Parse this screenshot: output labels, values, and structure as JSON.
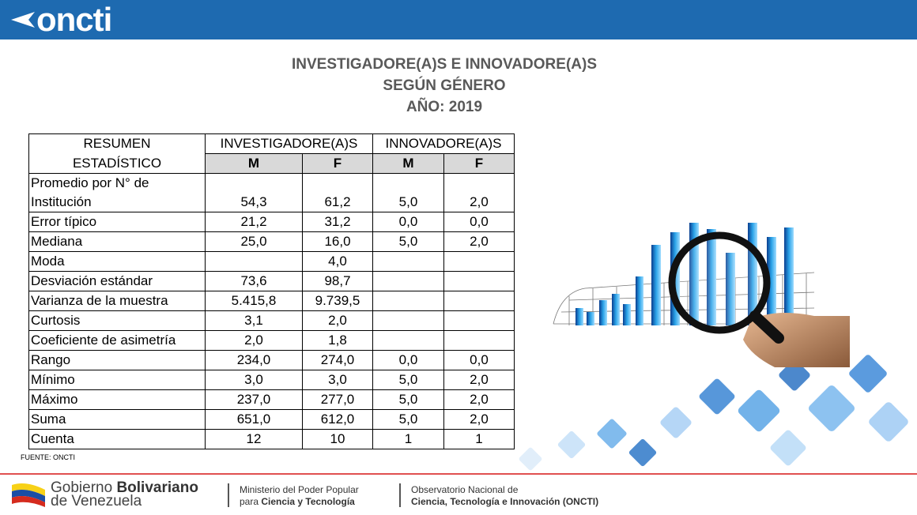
{
  "header": {
    "logo_text": "oncti"
  },
  "title": {
    "line1": "INVESTIGADORE(A)S E INNOVADORE(A)S",
    "line2": "SEGÚN GÉNERO",
    "line3": "AÑO: 2019"
  },
  "table": {
    "head_label_line1": "RESUMEN",
    "head_label_line2": "ESTADÍSTICO",
    "group1": "INVESTIGADORE(A)S",
    "group2": "INNOVADORE(A)S",
    "sub": [
      "M",
      "F",
      "M",
      "F"
    ],
    "rows": [
      {
        "label_line1": "Promedio por N° de",
        "label_line2": "Institución",
        "v": [
          "54,3",
          "61,2",
          "5,0",
          "2,0"
        ]
      },
      {
        "label": "Error típico",
        "v": [
          "21,2",
          "31,2",
          "0,0",
          "0,0"
        ]
      },
      {
        "label": "Mediana",
        "v": [
          "25,0",
          "16,0",
          "5,0",
          "2,0"
        ]
      },
      {
        "label": "Moda",
        "v": [
          "",
          "4,0",
          "",
          ""
        ]
      },
      {
        "label": "Desviación estándar",
        "v": [
          "73,6",
          "98,7",
          "",
          ""
        ]
      },
      {
        "label": "Varianza de la muestra",
        "v": [
          "5.415,8",
          "9.739,5",
          "",
          ""
        ]
      },
      {
        "label": "Curtosis",
        "v": [
          "3,1",
          "2,0",
          "",
          ""
        ]
      },
      {
        "label": "Coeficiente de asimetría",
        "v": [
          "2,0",
          "1,8",
          "",
          ""
        ]
      },
      {
        "label": "Rango",
        "v": [
          "234,0",
          "274,0",
          "0,0",
          "0,0"
        ]
      },
      {
        "label": "Mínimo",
        "v": [
          "3,0",
          "3,0",
          "5,0",
          "2,0"
        ]
      },
      {
        "label": "Máximo",
        "v": [
          "237,0",
          "277,0",
          "5,0",
          "2,0"
        ]
      },
      {
        "label": "Suma",
        "v": [
          "651,0",
          "612,0",
          "5,0",
          "2,0"
        ]
      },
      {
        "label": "Cuenta",
        "v": [
          "12",
          "10",
          "1",
          "1"
        ]
      }
    ]
  },
  "source": "FUENTE: ONCTI",
  "footer": {
    "gob_line1_a": "Gobierno ",
    "gob_line1_b": "Bolivariano",
    "gob_line2": "de Venezuela",
    "min_line1": "Ministerio del Poder Popular",
    "min_line2_a": "para ",
    "min_line2_b": "Ciencia y Tecnología",
    "obs_line1": "Observatorio Nacional de",
    "obs_line2": "Ciencia, Tecnología e Innovación (ONCTI)"
  },
  "colors": {
    "brand_blue": "#1e6ab0",
    "title_grey": "#595959",
    "header_grey": "#d9d9d9",
    "footer_red": "#e05050"
  },
  "icons": [
    "oncti-logo-mark",
    "magnifier-chart-illustration",
    "venezuela-flag-icon"
  ]
}
